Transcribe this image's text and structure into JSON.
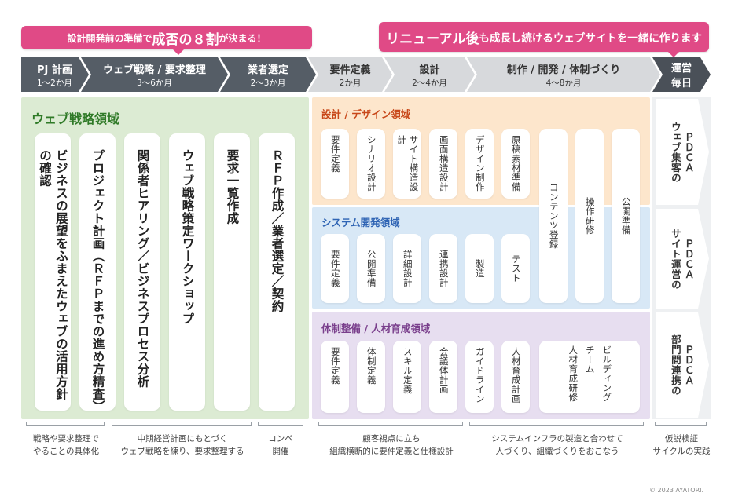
{
  "banners": {
    "left": {
      "pre": "設計開発前の準備で",
      "em": "成否の８割",
      "post": "が決まる！"
    },
    "right": {
      "em": "リニューアル後",
      "post": "も成長し続けるウェブサイトを一緒に作ります"
    }
  },
  "phases": [
    {
      "name": "PJ 計画",
      "duration": "1〜2か月"
    },
    {
      "name": "ウェブ戦略 / 要求整理",
      "duration": "3〜6か月"
    },
    {
      "name": "業者選定",
      "duration": "2〜3か月"
    },
    {
      "name": "要件定義",
      "duration": "2か月"
    },
    {
      "name": "設計",
      "duration": "2〜4か月"
    },
    {
      "name": "制作 / 開発 / 体制づくり",
      "duration": "4〜8か月"
    },
    {
      "name": "運営",
      "duration": "毎日"
    }
  ],
  "strategy": {
    "title": "ウェブ戦略領域",
    "cards": [
      "ビジネスの展望をふまえたウェブの活用方針の確認",
      "プロジェクト計画（ＲＦＰまでの進め方精査）",
      "関係者ヒアリング／ビジネスプロセス分析",
      "ウェブ戦略策定ワークショップ",
      "要求一覧作成",
      "ＲＦＰ作成／業者選定／契約"
    ]
  },
  "design": {
    "title": "設計 / デザイン領域",
    "cards": [
      "要件定義",
      "シナリオ設計",
      "サイト構造設計",
      "画面構造設計",
      "デザイン制作",
      "原稿素材準備"
    ]
  },
  "system": {
    "title": "システム開発領域",
    "cards": [
      "要件定義",
      "公開準備",
      "詳細設計",
      "連携設計",
      "製造",
      "テスト"
    ]
  },
  "org": {
    "title": "体制整備 / 人材育成領域",
    "cards": [
      "要件定義",
      "体制定義",
      "スキル定義",
      "会議体計画",
      "ガイドライン",
      "人材育成計画"
    ],
    "wide_card": [
      "人材育成研修",
      "チーム",
      "ビルディング"
    ]
  },
  "shared_cards": [
    "コンテンツ登録",
    "操作研修",
    "公開準備"
  ],
  "operations": [
    {
      "line1": "ウェブ集客の",
      "line2": "ＰＤＣＡ"
    },
    {
      "line1": "サイト運営の",
      "line2": "ＰＤＣＡ"
    },
    {
      "line1": "部門間連携の",
      "line2": "ＰＤＣＡ"
    }
  ],
  "notes": [
    [
      "戦略や要求整理で",
      "やることの具体化"
    ],
    [
      "中期経営計画にもとづく",
      "ウェブ戦略を練り、要求整理する"
    ],
    [
      "コンペ",
      "開催"
    ],
    [
      "顧客視点に立ち",
      "組織横断的に要件定義と仕様設計"
    ],
    [
      "システムインフラの製造と合わせて",
      "人づくり、組織づくりをおこなう"
    ],
    [
      "仮説検証",
      "サイクルの実践"
    ]
  ],
  "copyright": "© 2023 AYATORI.",
  "colors": {
    "pink": "#e04a86",
    "phase_dark": "#555d66",
    "phase_light": "#d7d9dc",
    "strategy": "#dcebd3",
    "design": "#fde6cc",
    "system": "#d8e8f6",
    "org": "#e7def0"
  }
}
